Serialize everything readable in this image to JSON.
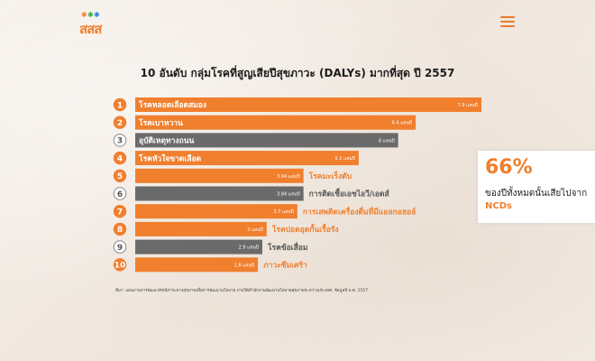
{
  "brand": {
    "logo_text": "สสส"
  },
  "header": {
    "menu_icon": "hamburger-menu-icon"
  },
  "colors": {
    "orange": "#f07f2e",
    "gray": "#6a6a6a",
    "badge_orange": "#f07f2e",
    "badge_gray_border": "#8a8a8a"
  },
  "chart_data": {
    "type": "bar",
    "orientation": "horizontal",
    "title": "10 อันดับ กลุ่มโรคที่สูญเสียปีสุขภาวะ (DALYs) มากที่สุด ปี 2557",
    "unit": "แสนปี",
    "categories": [
      "โรคหลอดเลือดสมอง",
      "โรคเบาหวาน",
      "อุบัติเหตุทางถนน",
      "โรคหัวใจขาดเลือด",
      "โรคมะเร็งตับ",
      "การติดเชื้อเอชไอวี/เอดส์",
      "การเสพติดเครื่องดื่มที่มีแอลกอฮอล์",
      "โรคปอดอุดกั้นเรื้อรัง",
      "โรคข้อเสื่อม",
      "ภาวะซึมเศร้า"
    ],
    "ranks": [
      "1",
      "2",
      "3",
      "4",
      "5",
      "6",
      "7",
      "8",
      "9",
      "10"
    ],
    "values": [
      7.9,
      6.4,
      6,
      5.1,
      3.84,
      3.84,
      3.7,
      3,
      2.9,
      2.8
    ],
    "value_labels": [
      "7.9 แสนปี",
      "6.4 แสนปี",
      "6 แสนปี",
      "5.1 แสนปี",
      "3.84 แสนปี",
      "3.84 แสนปี",
      "3.7 แสนปี",
      "3 แสนปี",
      "2.9 แสนปี",
      "2.8 แสนปี"
    ],
    "group": [
      "ncd",
      "ncd",
      "other",
      "ncd",
      "ncd",
      "other",
      "ncd",
      "ncd",
      "other",
      "ncd"
    ],
    "xlim": [
      0,
      7.9
    ],
    "grid": false
  },
  "source": "ที่มา: แผนงานการพัฒนาดัชนีภาระทางสุขภาพเพื่อการพัฒนานโยบาย ภายใต้สำนักงานพัฒนานโยบายสุขภาพระหว่างประเทศ, ข้อมูลปี พ.ศ. 2557",
  "callout": {
    "percent": "66%",
    "line1": "ของปีทั้งหมดนั้นเสียไปจาก",
    "line2": "NCDs"
  }
}
